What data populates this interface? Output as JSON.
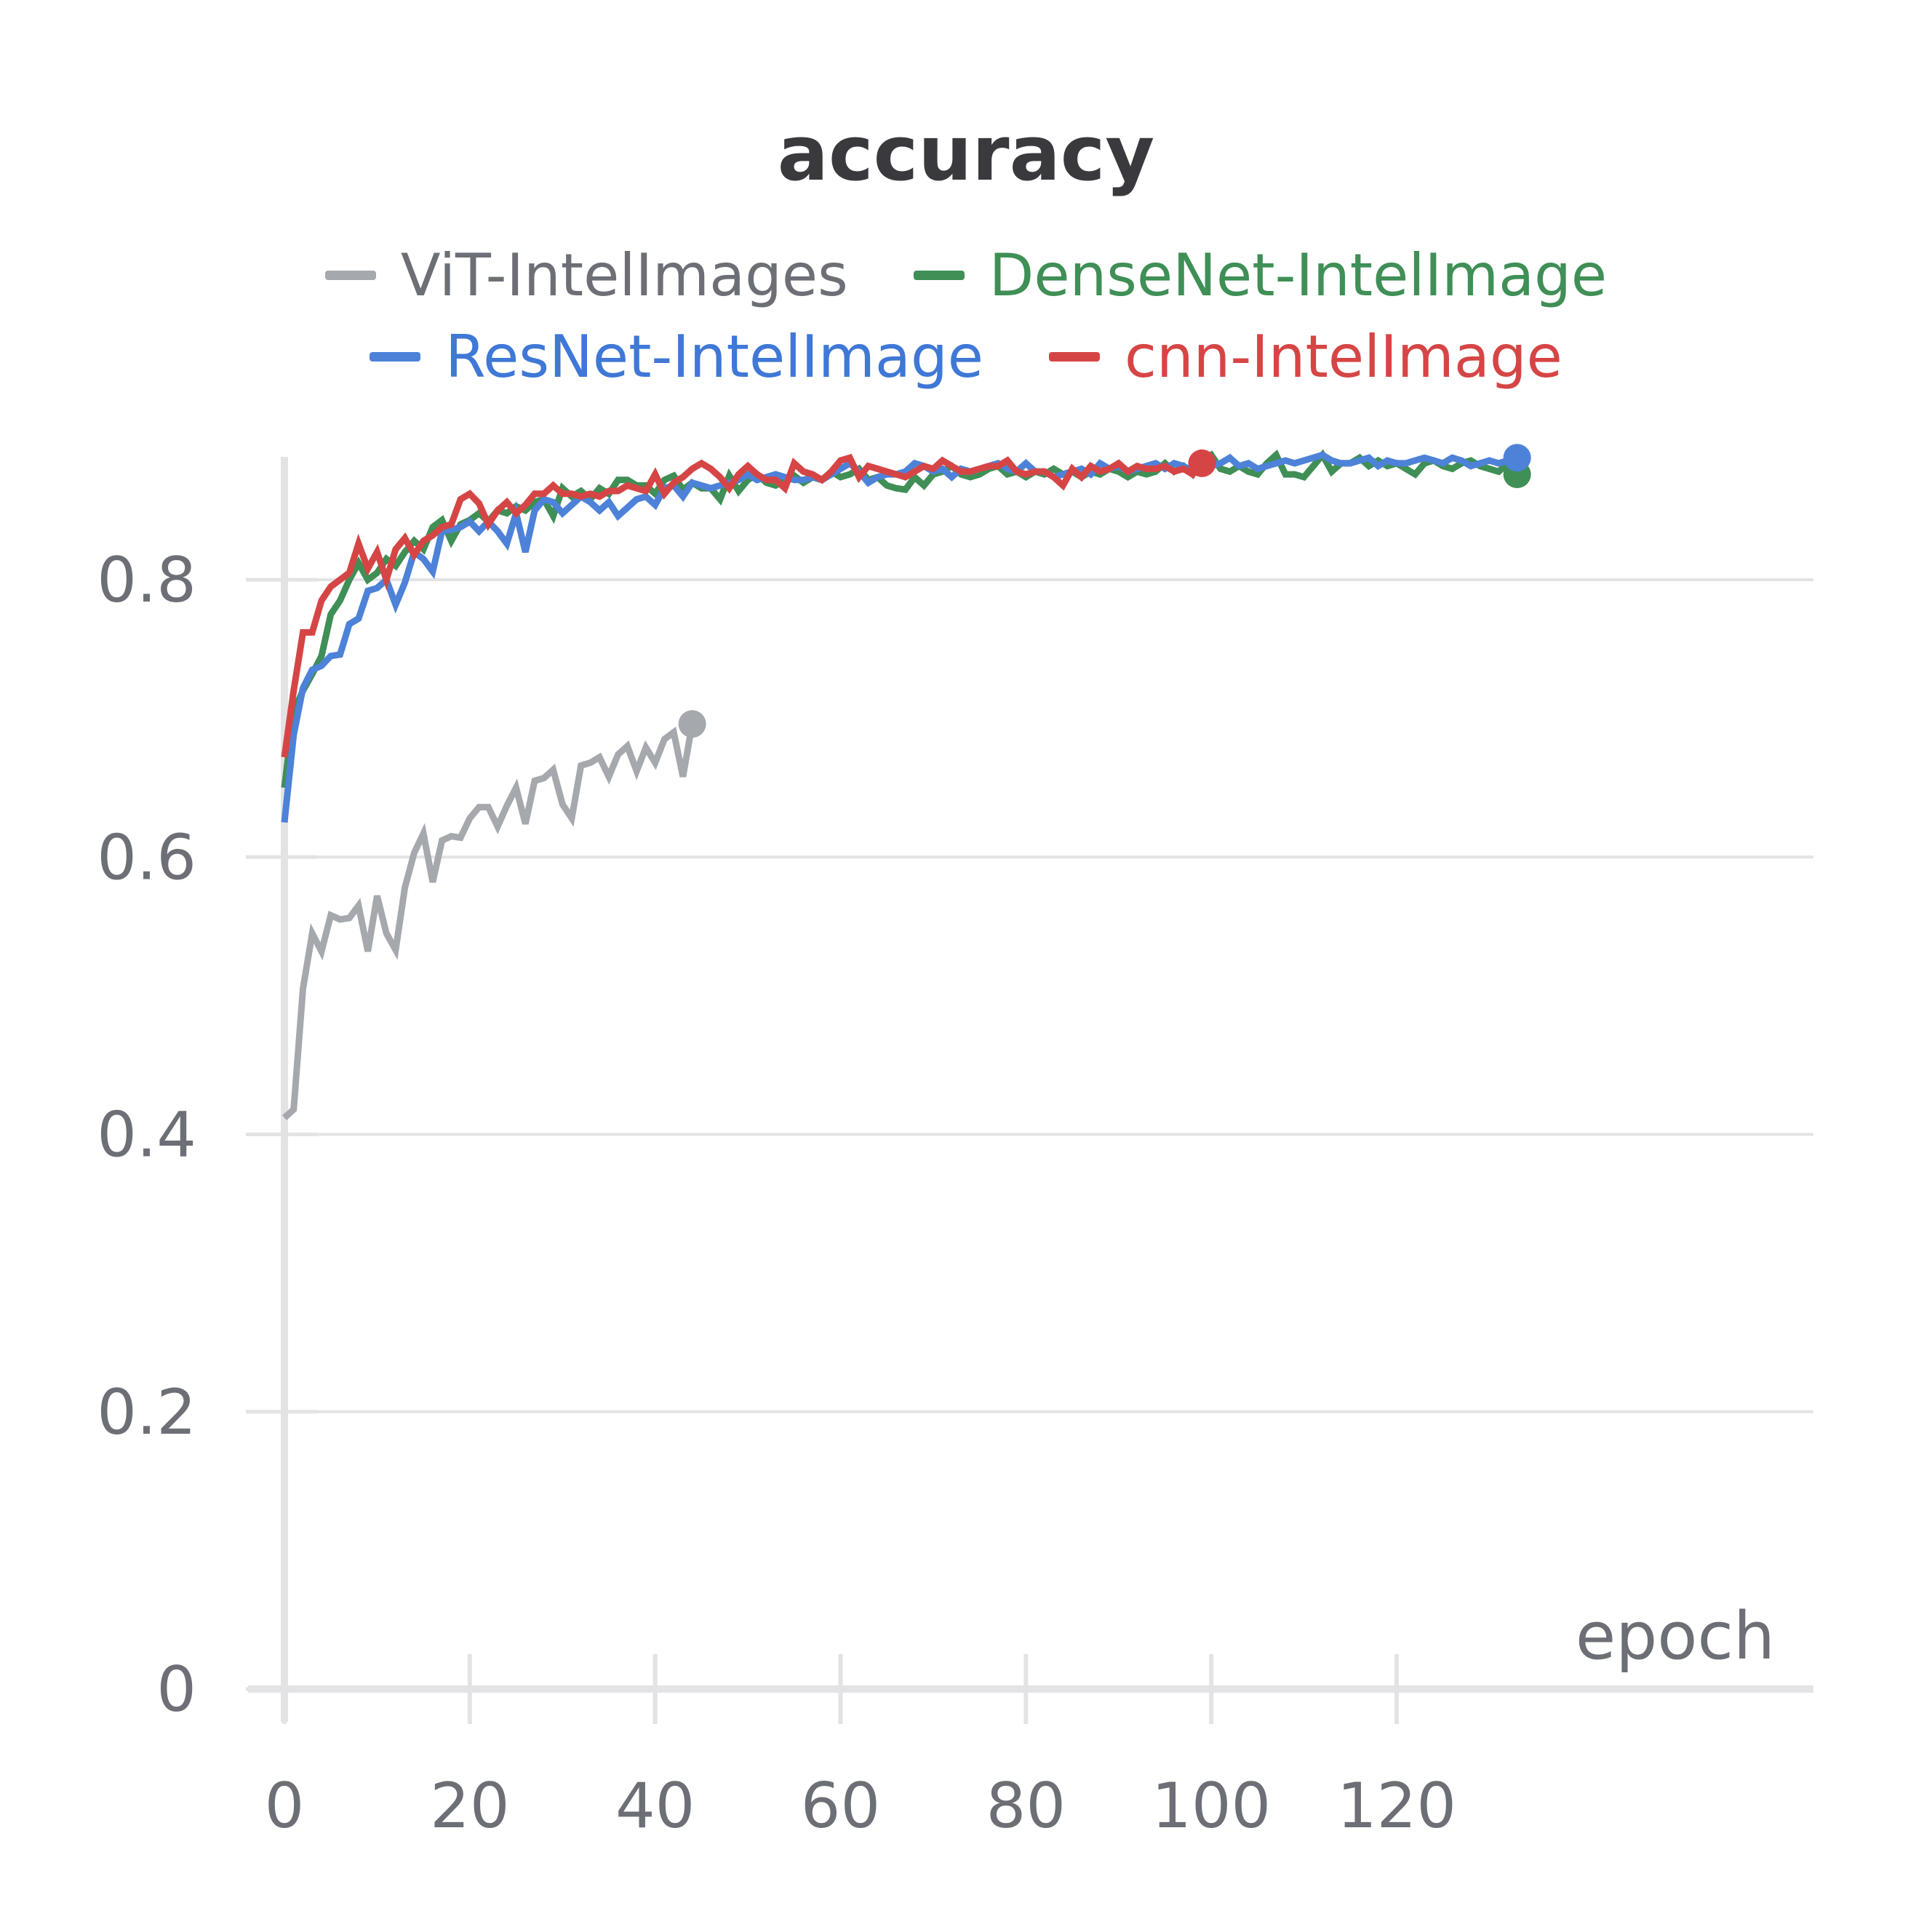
{
  "chart_data": {
    "type": "line",
    "title": "accuracy",
    "xlabel": "epoch",
    "ylabel": "",
    "xlim": [
      0,
      134
    ],
    "ylim": [
      0,
      0.9
    ],
    "xticks": [
      0,
      20,
      40,
      60,
      80,
      100,
      120
    ],
    "xtick_labels": [
      "0",
      "20",
      "40",
      "60",
      "80",
      "100",
      "120"
    ],
    "yticks": [
      0,
      0.2,
      0.4,
      0.6,
      0.8
    ],
    "ytick_labels": [
      "0",
      "0.2",
      "0.4",
      "0.6",
      "0.8"
    ],
    "grid": "horizontal",
    "legend_placement": "top",
    "series": [
      {
        "name": "ViT-IntelImages",
        "color": "#a5a9ad",
        "x_start": 0,
        "x_step": 1,
        "values": [
          0.412,
          0.418,
          0.505,
          0.545,
          0.532,
          0.558,
          0.555,
          0.556,
          0.565,
          0.532,
          0.572,
          0.545,
          0.533,
          0.578,
          0.603,
          0.617,
          0.582,
          0.612,
          0.615,
          0.614,
          0.628,
          0.636,
          0.636,
          0.622,
          0.637,
          0.65,
          0.624,
          0.655,
          0.657,
          0.663,
          0.638,
          0.628,
          0.666,
          0.668,
          0.672,
          0.658,
          0.674,
          0.68,
          0.662,
          0.679,
          0.668,
          0.685,
          0.69,
          0.658,
          0.696
        ]
      },
      {
        "name": "DenseNet-IntelImage",
        "color": "#3f8f56",
        "x_start": 0,
        "x_step": 1,
        "values": [
          0.65,
          0.705,
          0.72,
          0.732,
          0.745,
          0.775,
          0.785,
          0.8,
          0.812,
          0.8,
          0.805,
          0.815,
          0.81,
          0.82,
          0.828,
          0.822,
          0.838,
          0.843,
          0.828,
          0.84,
          0.843,
          0.848,
          0.842,
          0.85,
          0.848,
          0.853,
          0.85,
          0.856,
          0.858,
          0.846,
          0.866,
          0.86,
          0.864,
          0.858,
          0.866,
          0.862,
          0.872,
          0.872,
          0.868,
          0.868,
          0.862,
          0.872,
          0.875,
          0.865,
          0.87,
          0.866,
          0.866,
          0.858,
          0.875,
          0.864,
          0.872,
          0.876,
          0.87,
          0.868,
          0.872,
          0.875,
          0.87,
          0.874,
          0.872,
          0.878,
          0.874,
          0.876,
          0.88,
          0.872,
          0.874,
          0.868,
          0.866,
          0.865,
          0.874,
          0.868,
          0.876,
          0.878,
          0.882,
          0.876,
          0.874,
          0.876,
          0.88,
          0.882,
          0.876,
          0.878,
          0.874,
          0.878,
          0.876,
          0.88,
          0.876,
          0.878,
          0.874,
          0.878,
          0.876,
          0.88,
          0.878,
          0.874,
          0.878,
          0.876,
          0.878,
          0.884,
          0.878,
          0.882,
          0.876,
          0.886,
          0.89,
          0.88,
          0.878,
          0.882,
          0.878,
          0.876,
          0.884,
          0.89,
          0.876,
          0.876,
          0.874,
          0.882,
          0.89,
          0.878,
          0.884,
          0.884,
          0.888,
          0.882,
          0.886,
          0.882,
          0.884,
          0.88,
          0.876,
          0.884,
          0.886,
          0.882,
          0.88,
          0.884,
          0.886,
          0.882,
          0.88,
          0.878,
          0.884,
          0.876
        ]
      },
      {
        "name": "ResNet-IntelImage",
        "color": "#4d82d8",
        "x_start": 0,
        "x_step": 1,
        "values": [
          0.625,
          0.688,
          0.722,
          0.735,
          0.738,
          0.745,
          0.746,
          0.768,
          0.772,
          0.792,
          0.794,
          0.8,
          0.782,
          0.798,
          0.82,
          0.815,
          0.806,
          0.835,
          0.836,
          0.838,
          0.842,
          0.835,
          0.842,
          0.835,
          0.826,
          0.848,
          0.82,
          0.85,
          0.858,
          0.856,
          0.848,
          0.854,
          0.86,
          0.856,
          0.85,
          0.856,
          0.846,
          0.852,
          0.858,
          0.86,
          0.854,
          0.866,
          0.868,
          0.86,
          0.87,
          0.868,
          0.866,
          0.868,
          0.87,
          0.872,
          0.876,
          0.872,
          0.874,
          0.876,
          0.874,
          0.872,
          0.872,
          0.874,
          0.872,
          0.876,
          0.88,
          0.884,
          0.878,
          0.87,
          0.874,
          0.876,
          0.876,
          0.878,
          0.884,
          0.882,
          0.878,
          0.88,
          0.874,
          0.88,
          0.878,
          0.88,
          0.882,
          0.884,
          0.88,
          0.878,
          0.884,
          0.878,
          0.878,
          0.874,
          0.876,
          0.878,
          0.88,
          0.876,
          0.884,
          0.88,
          0.882,
          0.878,
          0.88,
          0.882,
          0.884,
          0.88,
          0.884,
          0.882,
          0.878,
          0.88,
          0.882,
          0.884,
          0.888,
          0.882,
          0.884,
          0.88,
          0.882,
          0.884,
          0.886,
          0.884,
          0.886,
          0.888,
          0.89,
          0.886,
          0.884,
          0.884,
          0.886,
          0.888,
          0.882,
          0.886,
          0.884,
          0.884,
          0.886,
          0.888,
          0.886,
          0.884,
          0.888,
          0.886,
          0.882,
          0.884,
          0.886,
          0.884,
          0.886,
          0.888
        ]
      },
      {
        "name": "cnn-IntelImage",
        "color": "#d64545",
        "x_start": 0,
        "x_step": 1,
        "values": [
          0.672,
          0.72,
          0.762,
          0.762,
          0.785,
          0.795,
          0.8,
          0.805,
          0.826,
          0.808,
          0.82,
          0.8,
          0.822,
          0.83,
          0.818,
          0.828,
          0.832,
          0.838,
          0.84,
          0.858,
          0.862,
          0.855,
          0.84,
          0.85,
          0.856,
          0.848,
          0.854,
          0.862,
          0.862,
          0.868,
          0.862,
          0.862,
          0.86,
          0.862,
          0.86,
          0.864,
          0.864,
          0.868,
          0.866,
          0.864,
          0.876,
          0.862,
          0.87,
          0.874,
          0.88,
          0.884,
          0.88,
          0.874,
          0.866,
          0.876,
          0.882,
          0.876,
          0.872,
          0.872,
          0.866,
          0.884,
          0.878,
          0.876,
          0.872,
          0.878,
          0.886,
          0.888,
          0.874,
          0.882,
          0.88,
          0.878,
          0.876,
          0.874,
          0.878,
          0.882,
          0.88,
          0.886,
          0.882,
          0.878,
          0.878,
          0.88,
          0.882,
          0.882,
          0.886,
          0.878,
          0.876,
          0.878,
          0.878,
          0.874,
          0.868,
          0.88,
          0.874,
          0.882,
          0.878,
          0.88,
          0.884,
          0.878,
          0.882,
          0.88,
          0.88,
          0.882,
          0.878,
          0.88,
          0.876,
          0.884
        ]
      }
    ]
  }
}
